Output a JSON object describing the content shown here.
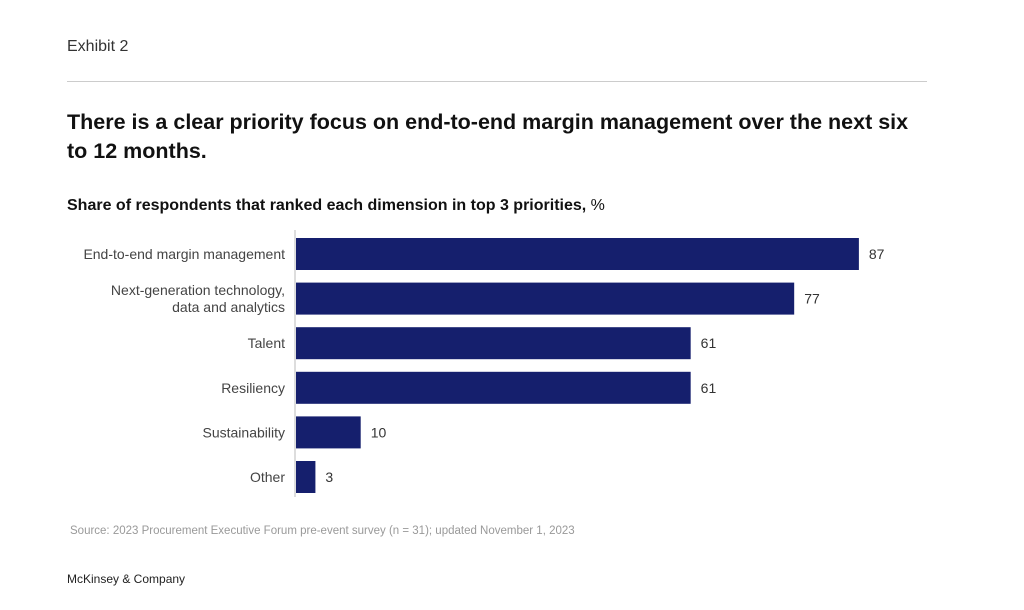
{
  "exhibit": "Exhibit 2",
  "title": "There is a clear priority focus on end-to-end margin management over the next six to 12 months.",
  "subtitle": "Share of respondents that ranked each dimension in top 3 priorities,",
  "subtitle_unit": " %",
  "source": "Source: 2023 Procurement Executive Forum pre-event survey (n = 31); updated November 1, 2023",
  "brand": "McKinsey & Company",
  "chart_data": {
    "type": "bar",
    "orientation": "horizontal",
    "categories": [
      [
        "End-to-end margin management"
      ],
      [
        "Next-generation technology,",
        "data and  analytics"
      ],
      [
        "Talent"
      ],
      [
        "Resiliency"
      ],
      [
        "Sustainability"
      ],
      [
        "Other"
      ]
    ],
    "values": [
      87,
      77,
      61,
      61,
      10,
      3
    ],
    "bar_color": "#151f6d",
    "xlim": [
      0,
      100
    ],
    "grid": false,
    "unit": "%"
  }
}
